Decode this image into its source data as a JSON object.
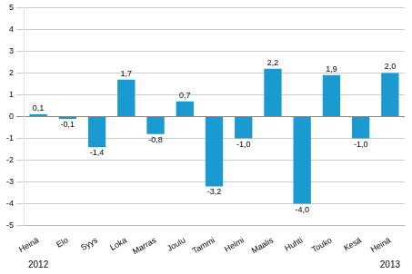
{
  "chart_data": {
    "type": "bar",
    "categories": [
      "Heinä",
      "Elo",
      "Syys",
      "Loka",
      "Marras",
      "Joulu",
      "Tammi",
      "Helmi",
      "Maalis",
      "Huhti",
      "Touko",
      "Kesä",
      "Heinä"
    ],
    "values": [
      0.1,
      -0.1,
      -1.4,
      1.7,
      -0.8,
      0.7,
      -3.2,
      -1.0,
      2.2,
      -4.0,
      1.9,
      -1.0,
      2.0
    ],
    "value_labels": [
      "0,1",
      "-0,1",
      "-1,4",
      "1,7",
      "-0,8",
      "0,7",
      "-3,2",
      "-1,0",
      "2,2",
      "-4,0",
      "1,9",
      "-1,0",
      "2,0"
    ],
    "data_labels": true,
    "color": "#1b9ad2",
    "ylim": [
      -5,
      5
    ],
    "yticks": [
      -5,
      -4,
      -3,
      -2,
      -1,
      0,
      1,
      2,
      3,
      4,
      5
    ],
    "grid": true,
    "annotations": [
      {
        "text": "2012",
        "index": 0
      },
      {
        "text": "2013",
        "index": 12
      }
    ]
  }
}
